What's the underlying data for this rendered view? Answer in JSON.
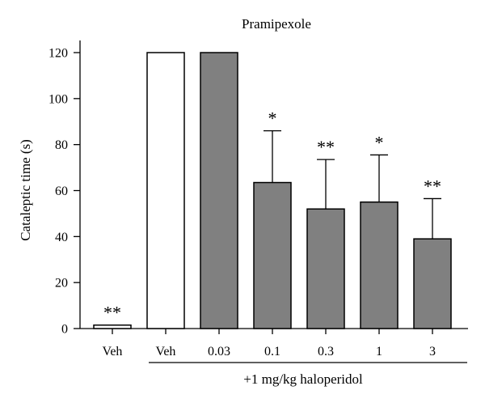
{
  "chart_data": {
    "type": "bar",
    "title": "Pramipexole",
    "xlabel": "",
    "ylabel": "Cataleptic time (s)",
    "ylim": [
      0,
      120
    ],
    "yticks": [
      0,
      20,
      40,
      60,
      80,
      100,
      120
    ],
    "categories": [
      "Veh",
      "Veh",
      "0.03",
      "0.1",
      "0.3",
      "1",
      "3"
    ],
    "values": [
      1.5,
      120,
      120,
      63.5,
      52,
      55,
      39
    ],
    "errors": [
      0,
      0,
      0,
      22.5,
      21.5,
      20.5,
      17.5
    ],
    "significance": [
      "**",
      "",
      "",
      "*",
      "**",
      "*",
      "**"
    ],
    "group_label": "+1 mg/kg haloperidol",
    "group_range": [
      1,
      6
    ],
    "grid": false,
    "colors": {
      "vehicle_fill": "#ffffff",
      "drug_fill": "#808080",
      "stroke": "#000000"
    }
  }
}
